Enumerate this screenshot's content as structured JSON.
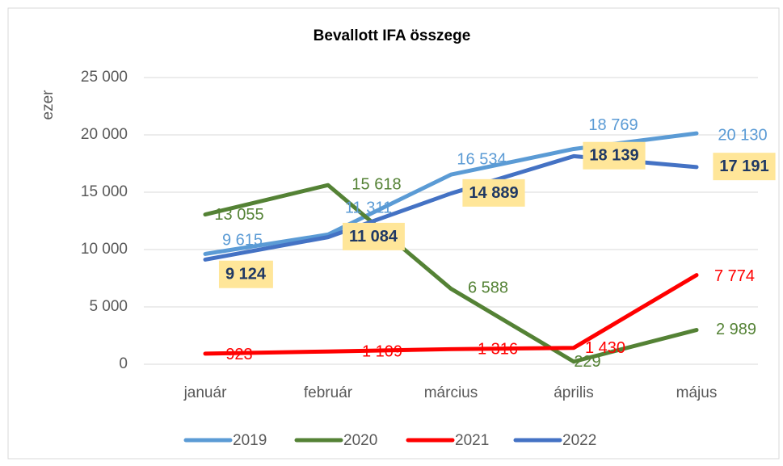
{
  "chart_data": {
    "type": "line",
    "title": "Bevallott IFA összege",
    "y_label": "ezer",
    "categories": [
      "január",
      "február",
      "március",
      "április",
      "május"
    ],
    "ylim": [
      0,
      25000
    ],
    "yticks": [
      0,
      {
        "value": 5000,
        "label": "5 000"
      },
      {
        "value": 10000,
        "label": "10 000"
      },
      {
        "value": 15000,
        "label": "15 000"
      },
      {
        "value": 20000,
        "label": "20 000"
      },
      {
        "value": 25000,
        "label": "25 000"
      }
    ],
    "grid": true,
    "legend": "bottom",
    "series": [
      {
        "name": "2019",
        "color": "#5b9bd5",
        "values": [
          9615,
          11311,
          16534,
          18769,
          20130
        ],
        "value_labels": [
          "9 615",
          "11 311",
          "16 534",
          "18 769",
          "20 130"
        ]
      },
      {
        "name": "2020",
        "color": "#548235",
        "values": [
          13055,
          15618,
          6588,
          229,
          2989
        ],
        "value_labels": [
          "13 055",
          "15 618",
          "6 588",
          "229",
          "2 989"
        ]
      },
      {
        "name": "2021",
        "color": "#ff0000",
        "values": [
          923,
          1109,
          1316,
          1430,
          7774
        ],
        "value_labels": [
          "923",
          "1 109",
          "1 316",
          "1 430",
          "7 774"
        ]
      },
      {
        "name": "2022",
        "color": "#4472c4",
        "values": [
          9124,
          11084,
          14889,
          18139,
          17191
        ],
        "value_labels": [
          "9 124",
          "11 084",
          "14 889",
          "18 139",
          "17 191"
        ],
        "label_box_color": "#ffe699"
      }
    ]
  }
}
